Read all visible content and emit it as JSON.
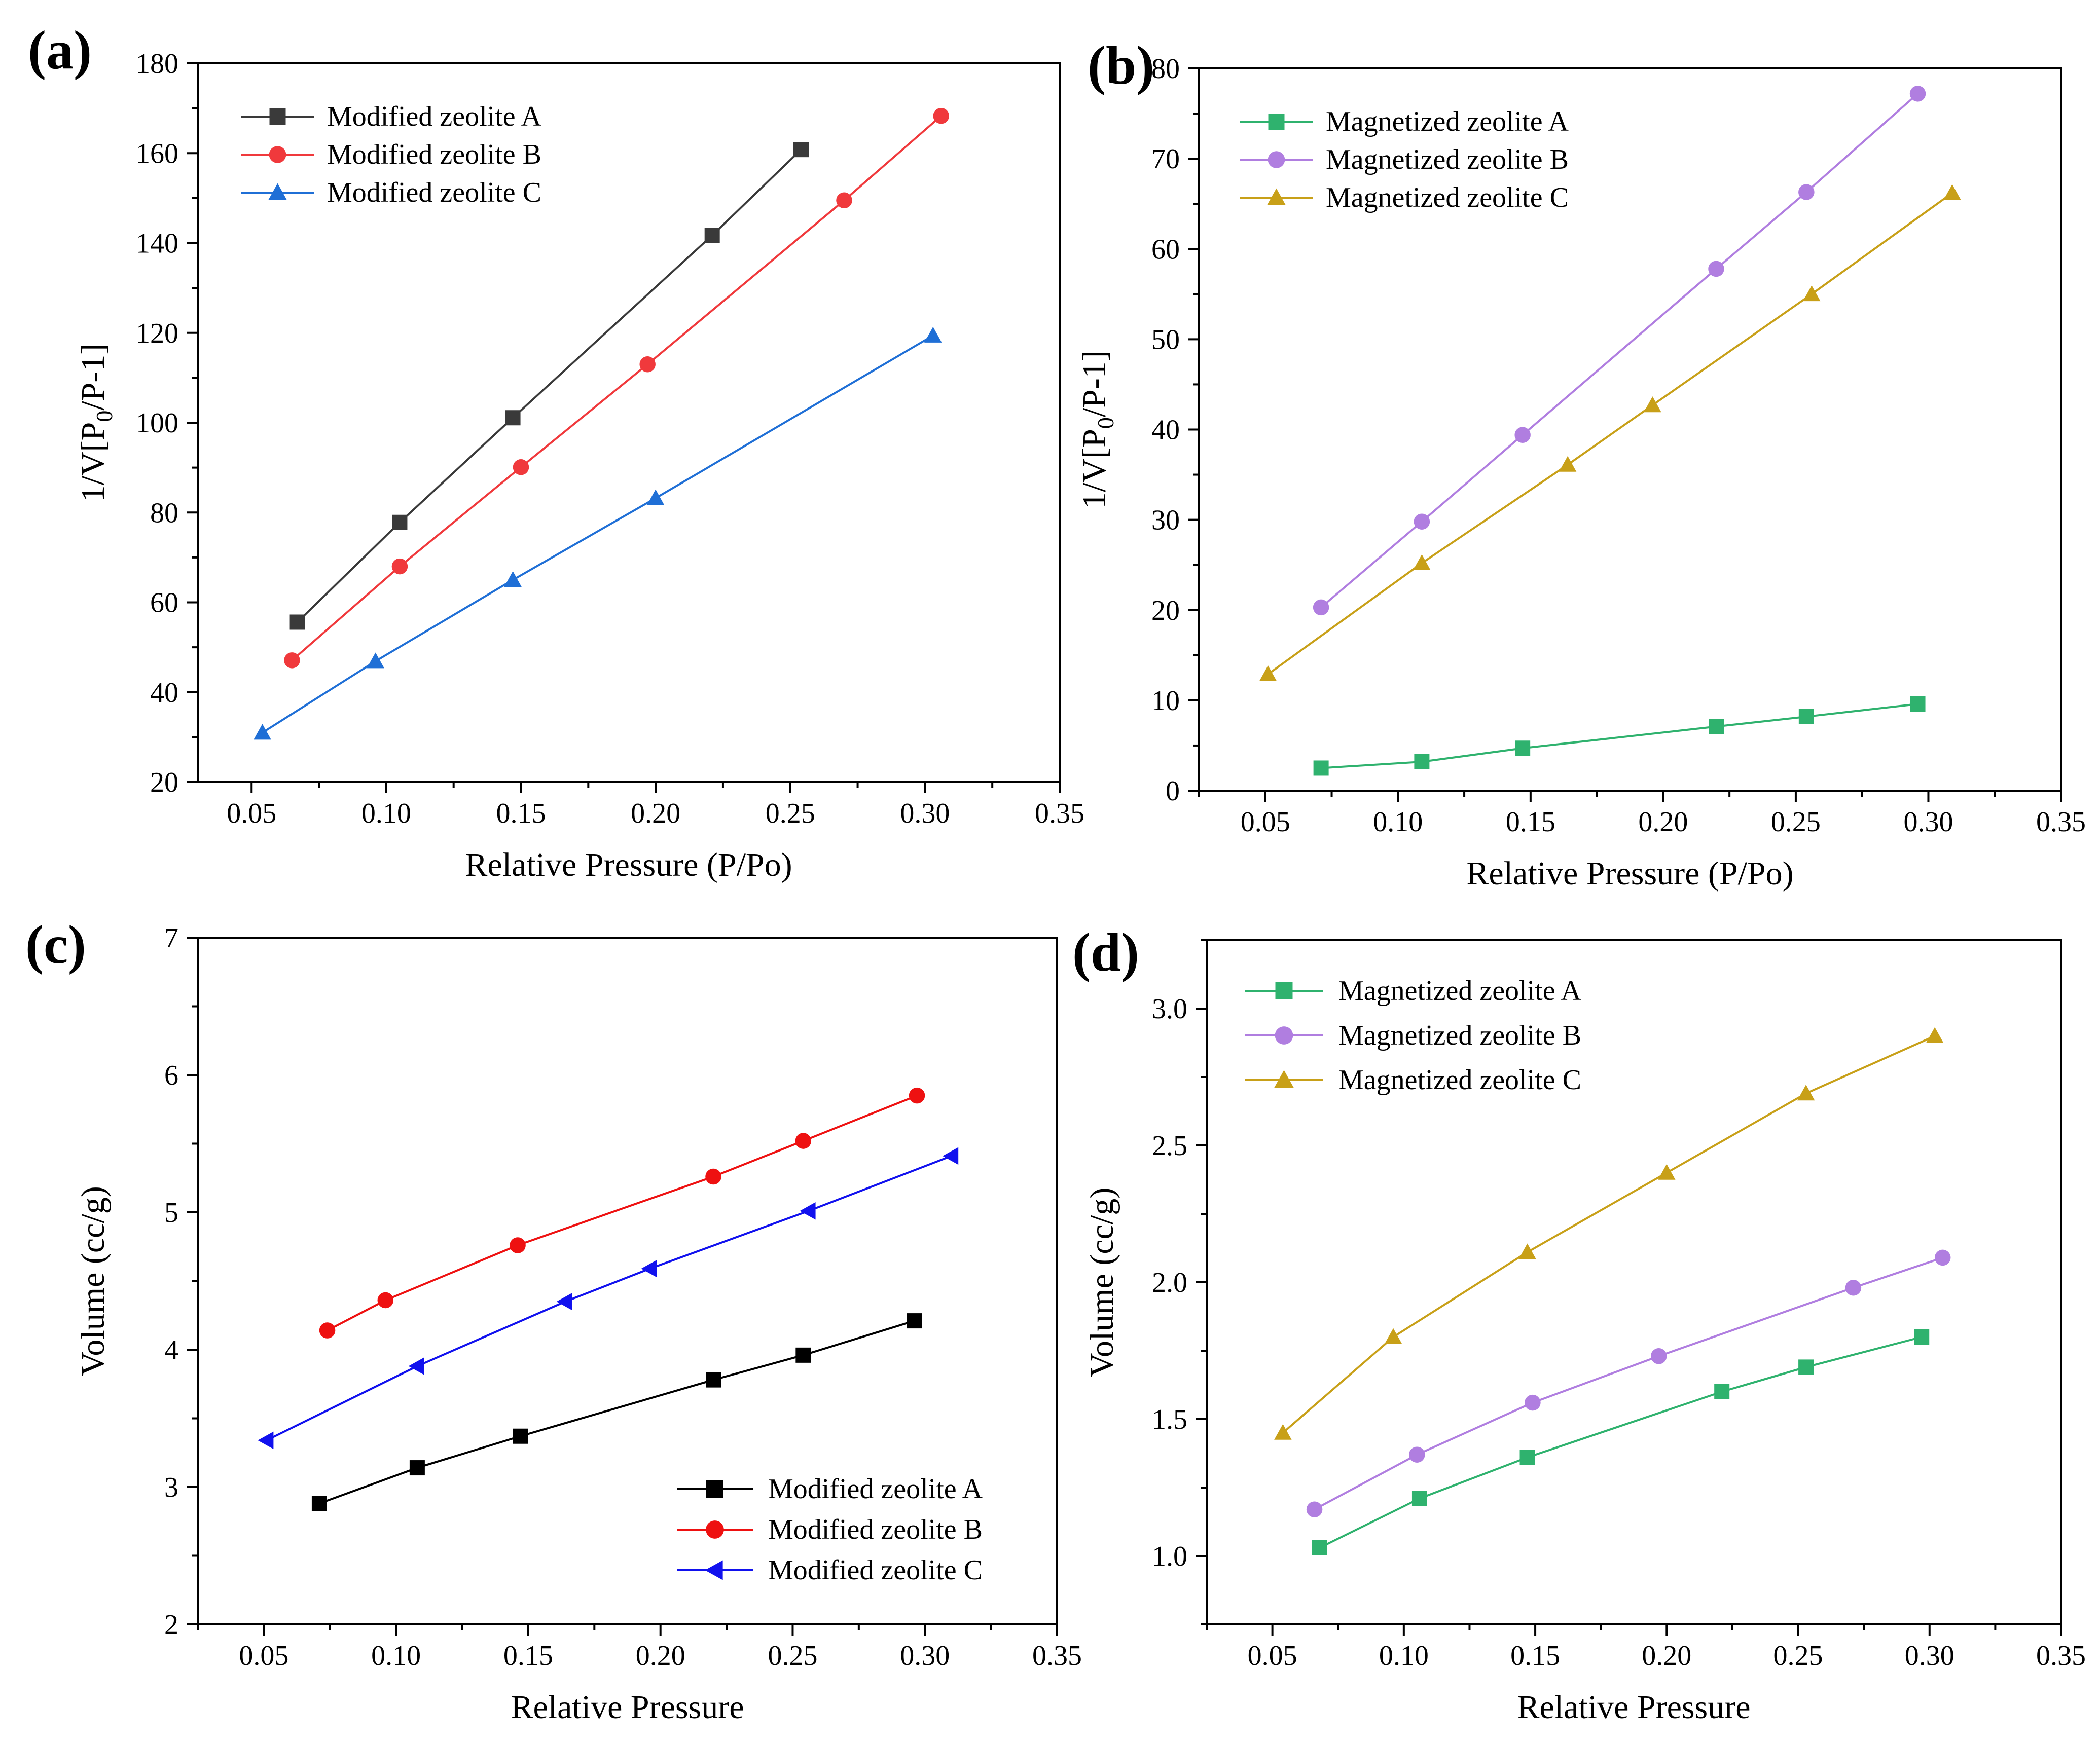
{
  "chart_data": [
    {
      "type": "line",
      "panel_label": "(a)",
      "xlabel": "Relative Pressure (P/Po)",
      "ylabel": {
        "main": "1/V[P",
        "sub": "0",
        "tail": "/P-1]"
      },
      "xlim": [
        0.03,
        0.35
      ],
      "ylim": [
        20,
        180
      ],
      "xticks": [
        "0.05",
        "0.10",
        "0.15",
        "0.20",
        "0.25",
        "0.30",
        "0.35"
      ],
      "yticks": [
        "20",
        "40",
        "60",
        "80",
        "100",
        "120",
        "140",
        "160",
        "180"
      ],
      "legend_position": "top-left",
      "series": [
        {
          "name": "Modified zeolite A",
          "color": "#3a3a3a",
          "marker": "square",
          "x": [
            0.067,
            0.105,
            0.147,
            0.221,
            0.254
          ],
          "y": [
            55.6,
            77.8,
            101.1,
            141.7,
            160.8
          ]
        },
        {
          "name": "Modified zeolite B",
          "color": "#f0393c",
          "marker": "circle",
          "x": [
            0.065,
            0.105,
            0.15,
            0.197,
            0.27,
            0.306
          ],
          "y": [
            47.1,
            68.0,
            90.1,
            113.0,
            149.5,
            168.3
          ]
        },
        {
          "name": "Modified zeolite C",
          "color": "#1f6fd6",
          "marker": "triangle-up",
          "x": [
            0.054,
            0.096,
            0.147,
            0.2,
            0.303
          ],
          "y": [
            31.0,
            46.9,
            65.0,
            83.2,
            119.4
          ]
        }
      ]
    },
    {
      "type": "line",
      "panel_label": "(b)",
      "xlabel": "Relative Pressure (P/Po)",
      "ylabel": {
        "main": "1/V[P",
        "sub": "0",
        "tail": "/P-1]"
      },
      "xlim": [
        0.025,
        0.35
      ],
      "ylim": [
        0,
        80
      ],
      "xticks": [
        "0.05",
        "0.10",
        "0.15",
        "0.20",
        "0.25",
        "0.30",
        "0.35"
      ],
      "yticks": [
        "0",
        "10",
        "20",
        "30",
        "40",
        "50",
        "60",
        "70",
        "80"
      ],
      "legend_position": "top-left",
      "series": [
        {
          "name": "Magnetized zeolite A",
          "color": "#2fb26e",
          "marker": "square",
          "x": [
            0.071,
            0.109,
            0.147,
            0.22,
            0.254,
            0.296
          ],
          "y": [
            2.5,
            3.2,
            4.7,
            7.1,
            8.2,
            9.6
          ]
        },
        {
          "name": "Magnetized zeolite B",
          "color": "#b07ee0",
          "marker": "circle",
          "x": [
            0.071,
            0.109,
            0.147,
            0.22,
            0.254,
            0.296
          ],
          "y": [
            20.3,
            29.8,
            39.4,
            57.8,
            66.3,
            77.2
          ]
        },
        {
          "name": "Magnetized zeolite C",
          "color": "#c8a018",
          "marker": "triangle-up",
          "x": [
            0.051,
            0.109,
            0.164,
            0.196,
            0.256,
            0.309
          ],
          "y": [
            12.9,
            25.2,
            36.1,
            42.7,
            55.0,
            66.2
          ]
        }
      ]
    },
    {
      "type": "line",
      "panel_label": "(c)",
      "xlabel": "Relative Pressure",
      "ylabel": {
        "main": "Volume (cc/g)"
      },
      "xlim": [
        0.025,
        0.35
      ],
      "ylim": [
        2,
        7
      ],
      "xticks": [
        "0.05",
        "0.10",
        "0.15",
        "0.20",
        "0.25",
        "0.30",
        "0.35"
      ],
      "yticks": [
        "2",
        "3",
        "4",
        "5",
        "6",
        "7"
      ],
      "legend_position": "bottom-right",
      "series": [
        {
          "name": "Modified zeolite A",
          "color": "#000000",
          "marker": "square",
          "x": [
            0.071,
            0.108,
            0.147,
            0.22,
            0.254,
            0.296
          ],
          "y": [
            2.88,
            3.14,
            3.37,
            3.78,
            3.96,
            4.21
          ]
        },
        {
          "name": "Modified zeolite B",
          "color": "#ee1111",
          "marker": "circle",
          "x": [
            0.074,
            0.096,
            0.146,
            0.22,
            0.254,
            0.297
          ],
          "y": [
            4.14,
            4.36,
            4.76,
            5.26,
            5.52,
            5.85
          ]
        },
        {
          "name": "Modified zeolite C",
          "color": "#1111ee",
          "marker": "triangle-left",
          "x": [
            0.051,
            0.108,
            0.164,
            0.196,
            0.256,
            0.31
          ],
          "y": [
            3.34,
            3.88,
            4.35,
            4.59,
            5.01,
            5.41
          ]
        }
      ]
    },
    {
      "type": "line",
      "panel_label": "(d)",
      "xlabel": "Relative Pressure",
      "ylabel": {
        "main": "Volume (cc/g)"
      },
      "xlim": [
        0.025,
        0.35
      ],
      "ylim": [
        0.75,
        3.25
      ],
      "xticks": [
        "0.05",
        "0.10",
        "0.15",
        "0.20",
        "0.25",
        "0.30",
        "0.35"
      ],
      "yticks": [
        "1.0",
        "1.5",
        "2.0",
        "2.5",
        "3.0"
      ],
      "legend_position": "top-left",
      "series": [
        {
          "name": "Magnetized zeolite A",
          "color": "#2fb26e",
          "marker": "square",
          "x": [
            0.068,
            0.106,
            0.147,
            0.221,
            0.253,
            0.297
          ],
          "y": [
            1.03,
            1.21,
            1.36,
            1.6,
            1.69,
            1.8
          ]
        },
        {
          "name": "Magnetized zeolite B",
          "color": "#b07ee0",
          "marker": "circle",
          "x": [
            0.066,
            0.105,
            0.149,
            0.197,
            0.271,
            0.305
          ],
          "y": [
            1.17,
            1.37,
            1.56,
            1.73,
            1.98,
            2.09
          ]
        },
        {
          "name": "Magnetized zeolite C",
          "color": "#c8a018",
          "marker": "triangle-up",
          "x": [
            0.054,
            0.096,
            0.147,
            0.2,
            0.253,
            0.302
          ],
          "y": [
            1.45,
            1.8,
            2.11,
            2.4,
            2.69,
            2.9
          ]
        }
      ]
    }
  ]
}
